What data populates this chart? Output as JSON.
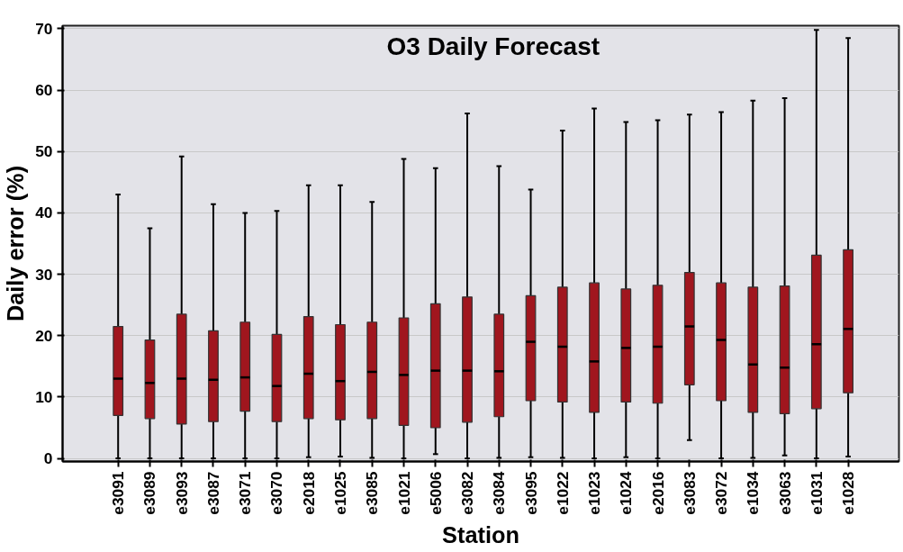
{
  "chart_data": {
    "type": "box",
    "title": "O3 Daily Forecast",
    "xlabel": "Station",
    "ylabel": "Daily error (%)",
    "categories": [
      "e3091",
      "e3089",
      "e3093",
      "e3087",
      "e3071",
      "e3070",
      "e2018",
      "e1025",
      "e3085",
      "e1021",
      "e5006",
      "e3082",
      "e3084",
      "e3095",
      "e1022",
      "e1023",
      "e1024",
      "e2016",
      "e3083",
      "e3072",
      "e1034",
      "e3063",
      "e1031",
      "e1028"
    ],
    "color": "#a0161e",
    "ylim": [
      -0.5,
      70.5
    ],
    "yticks": [
      0,
      10,
      20,
      30,
      40,
      50,
      60,
      70
    ],
    "grid": "y",
    "boxes": [
      {
        "low": 0,
        "q1": 7,
        "median": 13,
        "q3": 21.5,
        "high": 43
      },
      {
        "low": 0,
        "q1": 6.5,
        "median": 12.3,
        "q3": 19.3,
        "high": 37.5
      },
      {
        "low": 0,
        "q1": 5.6,
        "median": 13,
        "q3": 23.5,
        "high": 49.2
      },
      {
        "low": 0,
        "q1": 6,
        "median": 12.8,
        "q3": 20.8,
        "high": 41.4
      },
      {
        "low": 0,
        "q1": 7.7,
        "median": 13.2,
        "q3": 22.2,
        "high": 40
      },
      {
        "low": 0,
        "q1": 6,
        "median": 11.8,
        "q3": 20.2,
        "high": 40.3
      },
      {
        "low": 0.2,
        "q1": 6.5,
        "median": 13.8,
        "q3": 23.1,
        "high": 44.5
      },
      {
        "low": 0.3,
        "q1": 6.3,
        "median": 12.6,
        "q3": 21.8,
        "high": 44.5
      },
      {
        "low": 0.1,
        "q1": 6.5,
        "median": 14.1,
        "q3": 22.2,
        "high": 41.8
      },
      {
        "low": 0,
        "q1": 5.4,
        "median": 13.6,
        "q3": 22.9,
        "high": 48.8
      },
      {
        "low": 0.7,
        "q1": 5,
        "median": 14.3,
        "q3": 25.2,
        "high": 47.3
      },
      {
        "low": 0,
        "q1": 5.9,
        "median": 14.3,
        "q3": 26.3,
        "high": 56.2
      },
      {
        "low": 0.1,
        "q1": 6.8,
        "median": 14.2,
        "q3": 23.5,
        "high": 47.6
      },
      {
        "low": 0.2,
        "q1": 9.4,
        "median": 19,
        "q3": 26.5,
        "high": 43.8
      },
      {
        "low": 0.1,
        "q1": 9.2,
        "median": 18.2,
        "q3": 27.9,
        "high": 53.4
      },
      {
        "low": 0,
        "q1": 7.5,
        "median": 15.8,
        "q3": 28.6,
        "high": 57
      },
      {
        "low": 0.2,
        "q1": 9.2,
        "median": 18,
        "q3": 27.6,
        "high": 54.8
      },
      {
        "low": 0,
        "q1": 9,
        "median": 18.2,
        "q3": 28.2,
        "high": 55.1
      },
      {
        "low": 3,
        "q1": 12,
        "median": 21.5,
        "q3": 30.3,
        "high": 56
      },
      {
        "low": 0,
        "q1": 9.4,
        "median": 19.3,
        "q3": 28.6,
        "high": 56.4
      },
      {
        "low": 0.1,
        "q1": 7.5,
        "median": 15.3,
        "q3": 27.9,
        "high": 58.3
      },
      {
        "low": 0.5,
        "q1": 7.3,
        "median": 14.8,
        "q3": 28.1,
        "high": 58.7
      },
      {
        "low": 0,
        "q1": 8.1,
        "median": 18.6,
        "q3": 33.1,
        "high": 69.8
      },
      {
        "low": 0.3,
        "q1": 10.7,
        "median": 21.1,
        "q3": 34,
        "high": 68.5
      }
    ]
  }
}
